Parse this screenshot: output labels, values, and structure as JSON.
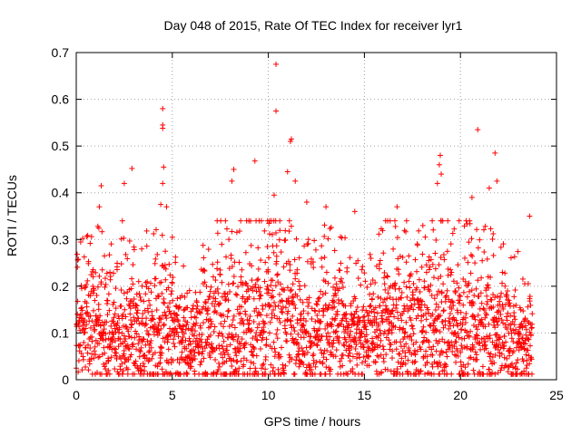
{
  "chart_data": {
    "type": "scatter",
    "title": "Day 048 of 2015, Rate Of TEC Index for receiver lyr1",
    "xlabel": "GPS time / hours",
    "ylabel": "ROTI / TECUs",
    "xlim": [
      0,
      25
    ],
    "ylim": [
      0,
      0.7
    ],
    "xticks": [
      0,
      5,
      10,
      15,
      20,
      25
    ],
    "xtick_labels": [
      "0",
      "5",
      "10",
      "15",
      "20",
      "25"
    ],
    "yticks": [
      0,
      0.1,
      0.2,
      0.3,
      0.4,
      0.5,
      0.6,
      0.7
    ],
    "ytick_labels": [
      "0",
      "0.1",
      "0.2",
      "0.3",
      "0.4",
      "0.5",
      "0.6",
      "0.7"
    ],
    "grid": true,
    "marker": "plus",
    "color": "#ff0000",
    "series": [
      {
        "name": "lyr1",
        "notable_points": [
          {
            "x": 10.4,
            "y": 0.675
          },
          {
            "x": 4.5,
            "y": 0.58
          },
          {
            "x": 10.4,
            "y": 0.575
          },
          {
            "x": 4.5,
            "y": 0.545
          },
          {
            "x": 4.5,
            "y": 0.538
          },
          {
            "x": 20.9,
            "y": 0.535
          },
          {
            "x": 11.2,
            "y": 0.515
          },
          {
            "x": 11.15,
            "y": 0.51
          },
          {
            "x": 21.8,
            "y": 0.485
          },
          {
            "x": 18.95,
            "y": 0.48
          },
          {
            "x": 9.3,
            "y": 0.468
          },
          {
            "x": 18.9,
            "y": 0.46
          },
          {
            "x": 4.55,
            "y": 0.455
          },
          {
            "x": 2.9,
            "y": 0.452
          },
          {
            "x": 8.2,
            "y": 0.45
          },
          {
            "x": 11.0,
            "y": 0.445
          },
          {
            "x": 21.9,
            "y": 0.425
          },
          {
            "x": 1.3,
            "y": 0.415
          },
          {
            "x": 2.5,
            "y": 0.42
          },
          {
            "x": 8.1,
            "y": 0.425
          },
          {
            "x": 4.5,
            "y": 0.42
          },
          {
            "x": 18.8,
            "y": 0.42
          },
          {
            "x": 19.0,
            "y": 0.44
          },
          {
            "x": 11.4,
            "y": 0.425
          },
          {
            "x": 10.3,
            "y": 0.395
          },
          {
            "x": 21.5,
            "y": 0.41
          },
          {
            "x": 4.4,
            "y": 0.375
          },
          {
            "x": 4.7,
            "y": 0.37
          },
          {
            "x": 1.2,
            "y": 0.37
          },
          {
            "x": 2.4,
            "y": 0.34
          },
          {
            "x": 14.5,
            "y": 0.36
          },
          {
            "x": 16.7,
            "y": 0.37
          },
          {
            "x": 23.6,
            "y": 0.35
          },
          {
            "x": 20.6,
            "y": 0.39
          },
          {
            "x": 12.0,
            "y": 0.38
          },
          {
            "x": 13.0,
            "y": 0.37
          }
        ],
        "density_profile": [
          {
            "x": 0.0,
            "median": 0.1,
            "spread": 0.1
          },
          {
            "x": 1.0,
            "median": 0.1,
            "spread": 0.14
          },
          {
            "x": 2.0,
            "median": 0.09,
            "spread": 0.12
          },
          {
            "x": 3.0,
            "median": 0.09,
            "spread": 0.12
          },
          {
            "x": 4.0,
            "median": 0.09,
            "spread": 0.14
          },
          {
            "x": 5.0,
            "median": 0.09,
            "spread": 0.12
          },
          {
            "x": 6.0,
            "median": 0.07,
            "spread": 0.08
          },
          {
            "x": 7.0,
            "median": 0.09,
            "spread": 0.14
          },
          {
            "x": 8.0,
            "median": 0.11,
            "spread": 0.16
          },
          {
            "x": 9.0,
            "median": 0.11,
            "spread": 0.16
          },
          {
            "x": 10.0,
            "median": 0.11,
            "spread": 0.17
          },
          {
            "x": 11.0,
            "median": 0.1,
            "spread": 0.16
          },
          {
            "x": 12.0,
            "median": 0.08,
            "spread": 0.12
          },
          {
            "x": 13.0,
            "median": 0.1,
            "spread": 0.14
          },
          {
            "x": 14.0,
            "median": 0.09,
            "spread": 0.12
          },
          {
            "x": 15.0,
            "median": 0.08,
            "spread": 0.1
          },
          {
            "x": 16.0,
            "median": 0.11,
            "spread": 0.14
          },
          {
            "x": 17.0,
            "median": 0.11,
            "spread": 0.14
          },
          {
            "x": 18.0,
            "median": 0.1,
            "spread": 0.14
          },
          {
            "x": 19.0,
            "median": 0.11,
            "spread": 0.16
          },
          {
            "x": 20.0,
            "median": 0.1,
            "spread": 0.15
          },
          {
            "x": 21.0,
            "median": 0.1,
            "spread": 0.14
          },
          {
            "x": 22.0,
            "median": 0.09,
            "spread": 0.12
          },
          {
            "x": 23.0,
            "median": 0.08,
            "spread": 0.12
          },
          {
            "x": 23.7,
            "median": 0.07,
            "spread": 0.1
          }
        ],
        "x_range": [
          0,
          23.75
        ]
      }
    ]
  }
}
